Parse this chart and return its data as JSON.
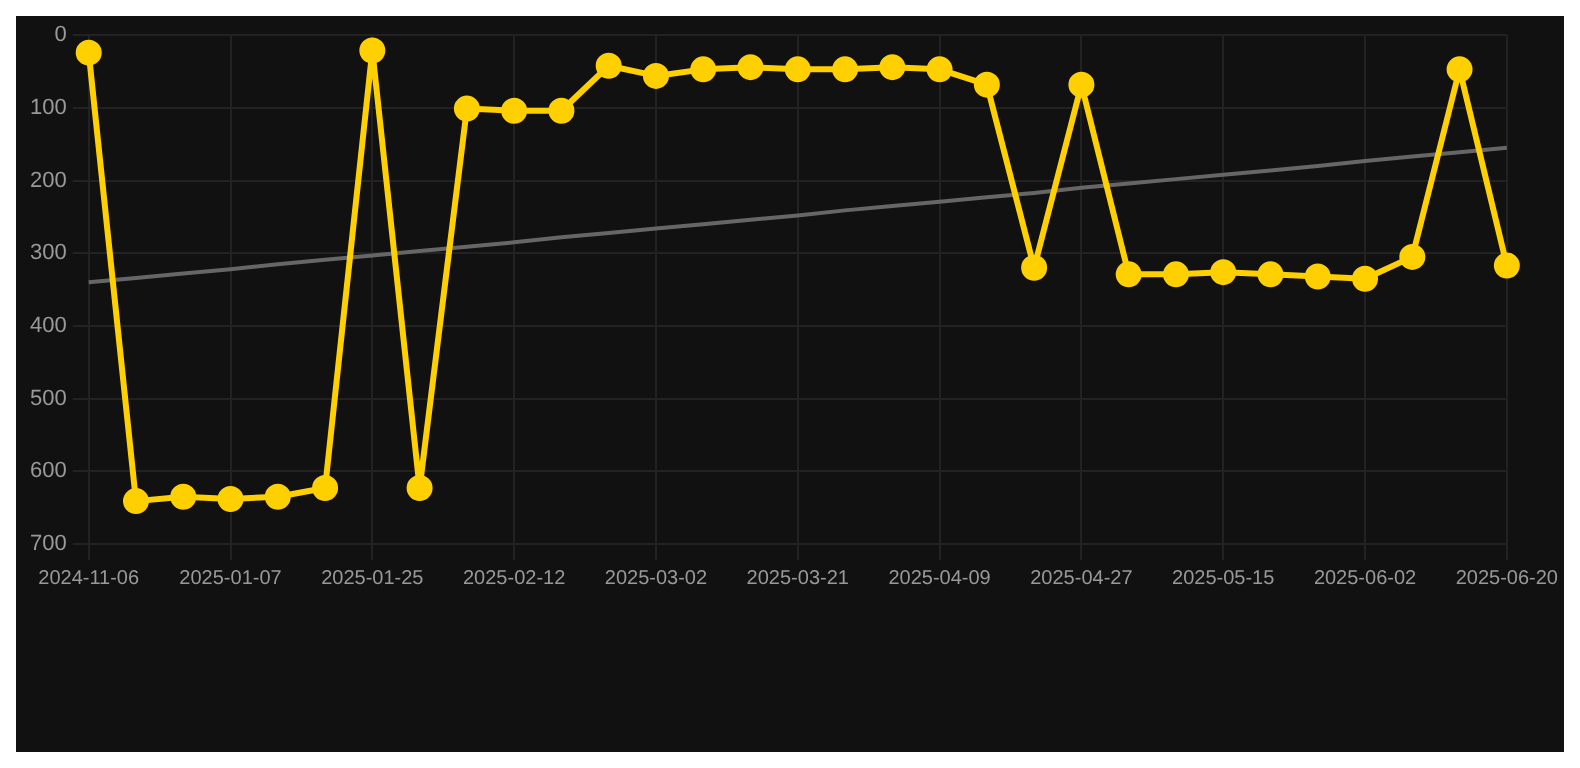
{
  "chart_data": {
    "type": "line",
    "categories": [
      "2024-11-06",
      null,
      null,
      "2025-01-07",
      null,
      null,
      "2025-01-25",
      null,
      null,
      "2025-02-12",
      null,
      null,
      "2025-03-02",
      null,
      null,
      "2025-03-21",
      null,
      null,
      "2025-04-09",
      null,
      null,
      "2025-04-27",
      null,
      null,
      "2025-05-15",
      null,
      null,
      "2025-06-02",
      null,
      null,
      "2025-06-20"
    ],
    "series": [
      {
        "color": "#ffd000",
        "marker": "circle",
        "values": [
          24,
          641,
          635,
          638,
          635,
          623,
          21,
          623,
          101,
          104,
          104,
          42,
          56,
          47,
          44,
          47,
          47,
          44,
          47,
          68,
          320,
          68,
          329,
          329,
          326,
          329,
          332,
          335,
          305,
          47,
          317
        ]
      },
      {
        "type": "line",
        "color": "#666666",
        "marker": "none",
        "values": [
          340,
          334,
          328,
          322,
          315,
          309,
          303,
          297,
          291,
          285,
          278,
          272,
          266,
          260,
          254,
          248,
          241,
          235,
          229,
          223,
          217,
          210,
          204,
          198,
          192,
          186,
          180,
          173,
          167,
          161,
          155
        ]
      }
    ],
    "ylim": [
      700,
      0
    ],
    "yticks": [
      0,
      100,
      200,
      300,
      400,
      500,
      600,
      700
    ],
    "grid": true,
    "legend": false
  }
}
